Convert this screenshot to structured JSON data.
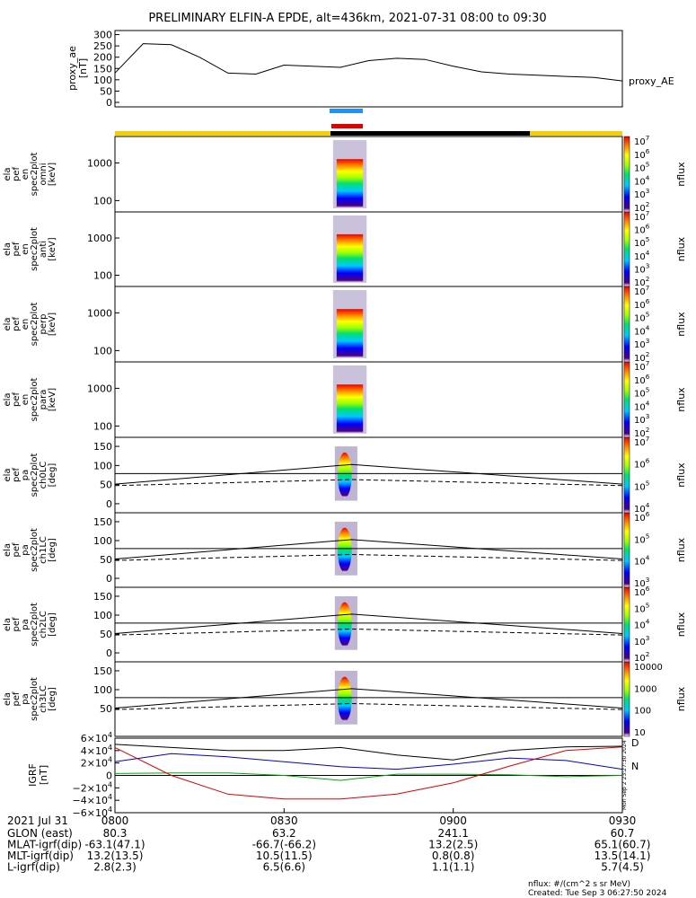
{
  "title": "PRELIMINARY ELFIN-A EPDE, alt=436km, 2021-07-31 08:00 to 09:30",
  "ae_panel": {
    "ylabel": [
      "proxy_ae",
      "[nT]"
    ],
    "yticks": [
      "300",
      "250",
      "200",
      "150",
      "100",
      "50",
      "0"
    ],
    "legend": "proxy_AE"
  },
  "spec_panels": [
    {
      "ylabel": [
        "ela",
        "pef",
        "en",
        "spec2plot",
        "omni",
        "[keV]"
      ],
      "yticks": [
        "1000",
        "100"
      ],
      "cbar_ticks": [
        "10^7",
        "10^6",
        "10^5",
        "10^4",
        "10^3",
        "10^2"
      ],
      "cbar_label": "nflux"
    },
    {
      "ylabel": [
        "ela",
        "pef",
        "en",
        "spec2plot",
        "anti",
        "[keV]"
      ],
      "yticks": [
        "1000",
        "100"
      ],
      "cbar_ticks": [
        "10^7",
        "10^6",
        "10^5",
        "10^4",
        "10^3",
        "10^2"
      ],
      "cbar_label": "nflux"
    },
    {
      "ylabel": [
        "ela",
        "pef",
        "en",
        "spec2plot",
        "perp",
        "[keV]"
      ],
      "yticks": [
        "1000",
        "100"
      ],
      "cbar_ticks": [
        "10^7",
        "10^6",
        "10^5",
        "10^4",
        "10^3",
        "10^2"
      ],
      "cbar_label": "nflux"
    },
    {
      "ylabel": [
        "ela",
        "pef",
        "en",
        "spec2plot",
        "para",
        "[keV]"
      ],
      "yticks": [
        "1000",
        "100"
      ],
      "cbar_ticks": [
        "10^7",
        "10^6",
        "10^5",
        "10^4",
        "10^3",
        "10^2"
      ],
      "cbar_label": "nflux"
    },
    {
      "ylabel": [
        "ela",
        "pef",
        "pa",
        "spec2plot",
        "ch0LC",
        "[deg]"
      ],
      "yticks": [
        "150",
        "100",
        "50",
        "0"
      ],
      "cbar_ticks": [
        "10^7",
        "10^6",
        "10^5",
        "10^4"
      ],
      "cbar_label": "nflux"
    },
    {
      "ylabel": [
        "ela",
        "pef",
        "pa",
        "spec2plot",
        "ch1LC",
        "[deg]"
      ],
      "yticks": [
        "150",
        "100",
        "50",
        "0"
      ],
      "cbar_ticks": [
        "10^6",
        "10^5",
        "10^4",
        "10^3"
      ],
      "cbar_label": "nflux"
    },
    {
      "ylabel": [
        "ela",
        "pef",
        "pa",
        "spec2plot",
        "ch2LC",
        "[deg]"
      ],
      "yticks": [
        "150",
        "100",
        "50",
        "0"
      ],
      "cbar_ticks": [
        "10^6",
        "10^5",
        "10^4",
        "10^3",
        "10^2"
      ],
      "cbar_label": "nflux"
    },
    {
      "ylabel": [
        "ela",
        "pef",
        "pa",
        "spec2plot",
        "ch3LC",
        "[deg]"
      ],
      "yticks": [
        "150",
        "100",
        "50"
      ],
      "cbar_ticks": [
        "10000",
        "1000",
        "100",
        "10"
      ],
      "cbar_label": "nflux"
    }
  ],
  "igrf_panel": {
    "ylabel": [
      "IGRF",
      "[nT]"
    ],
    "yticks": [
      "6×10^4",
      "4×10^4",
      "2×10^4",
      "0",
      "−2×10^4",
      "−4×10^4",
      "−6×10^4"
    ],
    "side_stamp": "Mon Sep  2 23:27:30 2024",
    "legend_marks": [
      "D",
      "N"
    ]
  },
  "colors": {
    "sci_zone": "#f5d000",
    "orbit_black": "#000000",
    "marker_blue": "#1e90ff",
    "marker_red": "#e00000",
    "igrf_x": "#0000cc",
    "igrf_y": "#00aa00",
    "igrf_z": "#dd0000",
    "igrf_total": "#000000"
  },
  "chart_data": [
    {
      "type": "line",
      "name": "proxy_ae",
      "x": [
        "08:00",
        "08:05",
        "08:10",
        "08:15",
        "08:20",
        "08:25",
        "08:30",
        "08:35",
        "08:40",
        "08:45",
        "08:50",
        "08:55",
        "09:00",
        "09:05",
        "09:10",
        "09:15",
        "09:20",
        "09:25",
        "09:30"
      ],
      "series": [
        {
          "name": "proxy_AE",
          "values": [
            130,
            260,
            255,
            200,
            130,
            125,
            165,
            160,
            155,
            185,
            195,
            190,
            160,
            135,
            125,
            120,
            115,
            110,
            95
          ]
        }
      ],
      "ylim": [
        0,
        310
      ]
    },
    {
      "type": "line",
      "name": "IGRF",
      "x_minutes": [
        0,
        10,
        20,
        30,
        40,
        50,
        60,
        70,
        80,
        90
      ],
      "series": [
        {
          "values": [
            22000,
            35000,
            30000,
            22000,
            14000,
            10000,
            18000,
            28000,
            24000,
            10000
          ]
        },
        {
          "values": [
            3000,
            4000,
            4000,
            0,
            -8000,
            2000,
            2000,
            1000,
            -2000,
            0
          ]
        },
        {
          "values": [
            45000,
            0,
            -30000,
            -38000,
            -38000,
            -30000,
            -12000,
            15000,
            40000,
            46000
          ]
        },
        {
          "values": [
            50000,
            45000,
            40000,
            40000,
            45000,
            33000,
            25000,
            40000,
            46000,
            47000
          ]
        }
      ],
      "ylim": [
        -60000,
        60000
      ]
    }
  ],
  "time_axis": {
    "date_label": "2021 Jul 31",
    "ticks": [
      "0800",
      "0830",
      "0900",
      "0930"
    ]
  },
  "orbit_table": {
    "rows": [
      {
        "label": "GLON (east)",
        "values": [
          "80.3",
          "63.2",
          "241.1",
          "60.7"
        ]
      },
      {
        "label": "MLAT-igrf(dip)",
        "values": [
          "-63.1(47.1)",
          "-66.7(-66.2)",
          "13.2(2.5)",
          "65.1(60.7)"
        ]
      },
      {
        "label": "MLT-igrf(dip)",
        "values": [
          "13.2(13.5)",
          "10.5(11.5)",
          "0.8(0.8)",
          "13.5(14.1)"
        ]
      },
      {
        "label": "L-igrf(dip)",
        "values": [
          "2.8(2.3)",
          "6.5(6.6)",
          "1.1(1.1)",
          "5.7(4.5)"
        ]
      }
    ]
  },
  "footer": {
    "units": "nflux: #/(cm^2 s sr MeV)",
    "created": "Created: Tue Sep  3 06:27:50 2024"
  }
}
